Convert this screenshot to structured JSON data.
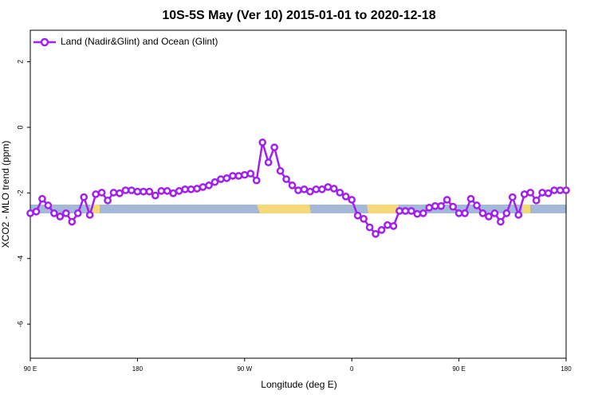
{
  "chart_data": {
    "type": "line",
    "title": "10S-5S May (Ver 10)   2015-01-01 to 2020-12-18",
    "x_label": "Longitude (deg E)",
    "y_label": "XCO2 - MLO trend (ppm)",
    "x": [
      90,
      95,
      100,
      105,
      110,
      115,
      120,
      125,
      130,
      135,
      140,
      145,
      150,
      155,
      160,
      165,
      170,
      175,
      180,
      185,
      190,
      195,
      200,
      205,
      210,
      215,
      220,
      225,
      230,
      235,
      240,
      245,
      250,
      255,
      260,
      265,
      270,
      275,
      280,
      285,
      290,
      295,
      300,
      305,
      310,
      315,
      320,
      325,
      330,
      335,
      340,
      345,
      350,
      355,
      360,
      365,
      370,
      375,
      380,
      385,
      390,
      395,
      400,
      405,
      410,
      415,
      420,
      425,
      430,
      435,
      440,
      445,
      450,
      455,
      460,
      465,
      470,
      475,
      480,
      485,
      490,
      495,
      500,
      505,
      510,
      515,
      520,
      525,
      530,
      535,
      540
    ],
    "series": [
      {
        "name": "Land (Nadir&Glint) and Ocean (Glint)",
        "color": "#a020f0",
        "values": [
          -2.62,
          -2.57,
          -2.18,
          -2.38,
          -2.62,
          -2.72,
          -2.62,
          -2.88,
          -2.62,
          -2.13,
          -2.67,
          -2.04,
          -1.99,
          -2.23,
          -1.99,
          -2.01,
          -1.92,
          -1.92,
          -1.96,
          -1.96,
          -1.96,
          -2.08,
          -1.94,
          -1.94,
          -2.01,
          -1.94,
          -1.89,
          -1.89,
          -1.87,
          -1.82,
          -1.77,
          -1.67,
          -1.58,
          -1.55,
          -1.48,
          -1.48,
          -1.45,
          -1.41,
          -1.62,
          -0.46,
          -1.07,
          -0.61,
          -1.33,
          -1.58,
          -1.77,
          -1.92,
          -1.89,
          -1.96,
          -1.89,
          -1.89,
          -1.82,
          -1.87,
          -1.99,
          -2.11,
          -2.21,
          -2.69,
          -2.79,
          -3.05,
          -3.25,
          -3.13,
          -2.98,
          -3.01,
          -2.55,
          -2.55,
          -2.55,
          -2.64,
          -2.62,
          -2.45,
          -2.4,
          -2.4,
          -2.21,
          -2.42,
          -2.62,
          -2.62,
          -2.18,
          -2.38,
          -2.62,
          -2.72,
          -2.62,
          -2.88,
          -2.62,
          -2.13,
          -2.67,
          -2.04,
          -1.99,
          -2.23,
          -1.99,
          -2.01,
          -1.92,
          -1.92,
          -1.92
        ]
      }
    ],
    "xlim": [
      90,
      540
    ],
    "xticks": [
      {
        "value": 90,
        "label": "90 E"
      },
      180,
      {
        "value": 270,
        "label": "90 W"
      },
      {
        "value": 360,
        "label": "0"
      },
      {
        "value": 450,
        "label": "90 E"
      },
      {
        "value": 540,
        "label": "180"
      }
    ],
    "ylim": [
      -7.04,
      2.96
    ],
    "yticks": [
      2,
      0,
      -2,
      -4,
      -6
    ],
    "legend": "top-left"
  }
}
